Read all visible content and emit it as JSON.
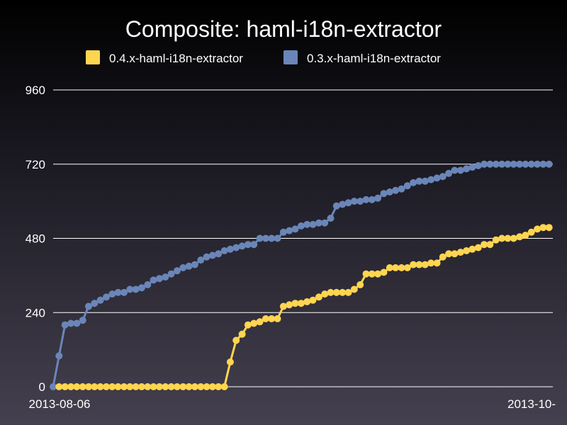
{
  "chart_data": {
    "type": "line",
    "title": "Composite: haml-i18n-extractor",
    "xlabel": "",
    "ylabel": "",
    "y_ticks": [
      "0",
      "240",
      "480",
      "720",
      "960"
    ],
    "ylim": [
      0,
      960
    ],
    "x_tick_labels": [
      "2013-08-06",
      "2013-10-"
    ],
    "grid": "horizontal",
    "legend_position": "top",
    "series": [
      {
        "name": "0.4.x-haml-i18n-extractor",
        "color": "#ffd550",
        "values": [
          null,
          0,
          0,
          0,
          0,
          0,
          0,
          0,
          0,
          0,
          0,
          0,
          0,
          0,
          0,
          0,
          0,
          0,
          0,
          0,
          0,
          0,
          0,
          0,
          0,
          0,
          0,
          0,
          0,
          0,
          80,
          150,
          170,
          200,
          205,
          210,
          220,
          220,
          220,
          260,
          265,
          270,
          270,
          275,
          280,
          290,
          300,
          305,
          305,
          305,
          305,
          315,
          330,
          365,
          365,
          365,
          370,
          385,
          385,
          385,
          385,
          395,
          395,
          395,
          400,
          400,
          420,
          430,
          430,
          435,
          440,
          445,
          450,
          460,
          460,
          475,
          480,
          480,
          480,
          485,
          490,
          500,
          510,
          515,
          515
        ]
      },
      {
        "name": "0.3.x-haml-i18n-extractor",
        "color": "#6a86b8",
        "values": [
          0,
          100,
          200,
          205,
          205,
          215,
          260,
          270,
          280,
          290,
          300,
          305,
          305,
          315,
          315,
          320,
          330,
          345,
          350,
          355,
          365,
          375,
          385,
          390,
          395,
          410,
          420,
          425,
          430,
          440,
          445,
          450,
          455,
          460,
          460,
          480,
          480,
          480,
          480,
          500,
          505,
          510,
          520,
          525,
          525,
          530,
          530,
          545,
          585,
          590,
          595,
          600,
          600,
          605,
          605,
          610,
          625,
          630,
          635,
          640,
          650,
          660,
          665,
          665,
          670,
          675,
          680,
          690,
          700,
          700,
          705,
          710,
          715,
          720,
          720,
          720,
          720,
          720,
          720,
          720,
          720,
          720,
          720,
          720,
          720
        ]
      }
    ]
  }
}
